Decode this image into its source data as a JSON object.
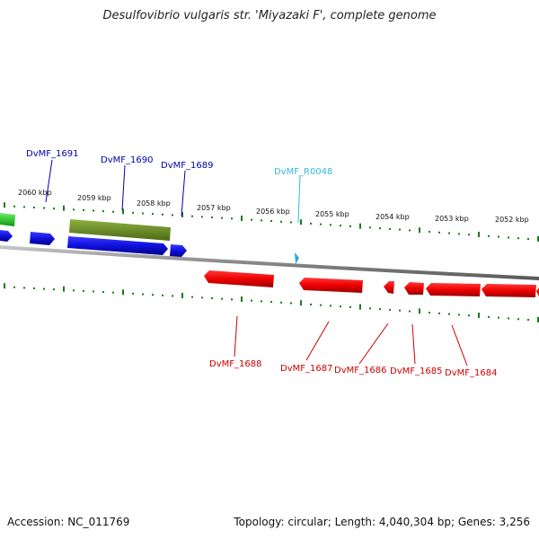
{
  "title": "Desulfovibrio vulgaris str. 'Miyazaki F', complete genome",
  "ticks": [
    "2060 kbp",
    "2059 kbp",
    "2058 kbp",
    "2057 kbp",
    "2056 kbp",
    "2055 kbp",
    "2054 kbp",
    "2053 kbp",
    "2052 kbp"
  ],
  "labels": {
    "top": [
      {
        "text": "DvMF_1691",
        "color": "#0000aa"
      },
      {
        "text": "DvMF_1690",
        "color": "#0000aa"
      },
      {
        "text": "DvMF_1689",
        "color": "#0000aa"
      },
      {
        "text": "DvMF_R0048",
        "color": "#33bbdd"
      }
    ],
    "bottom": [
      {
        "text": "DvMF_1688",
        "color": "#cc0000"
      },
      {
        "text": "DvMF_1687",
        "color": "#cc0000"
      },
      {
        "text": "DvMF_1686",
        "color": "#cc0000"
      },
      {
        "text": "DvMF_1685",
        "color": "#cc0000"
      },
      {
        "text": "DvMF_1684",
        "color": "#cc0000"
      }
    ]
  },
  "colors": {
    "forward_gene": "#1010dd",
    "reverse_gene": "#ee0000",
    "green_gene": "#22cc22",
    "olive_gene": "#6b8e23",
    "rna": "#22aadd",
    "tick": "#1a7a1a",
    "backbone": "#888888"
  },
  "footer": {
    "accession": "Accession: NC_011769",
    "summary": "Topology: circular; Length: 4,040,304 bp; Genes: 3,256"
  }
}
